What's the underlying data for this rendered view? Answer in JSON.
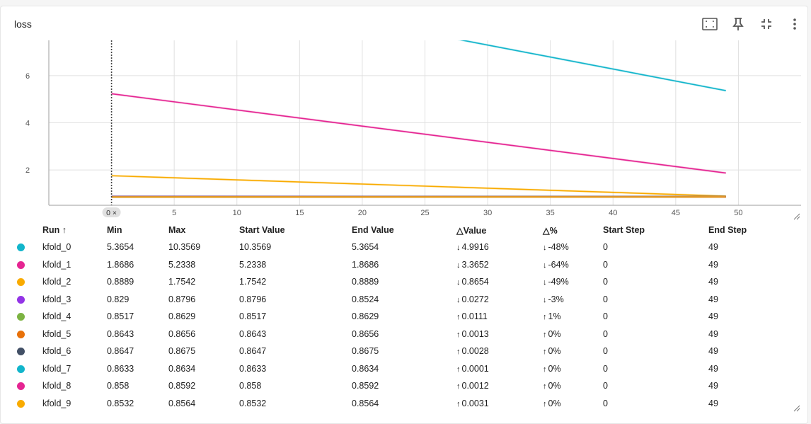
{
  "card": {
    "title": "loss"
  },
  "toolbar": {
    "icons": [
      "fit-domain-icon",
      "pin-icon",
      "collapse-icon",
      "more-vert-icon"
    ]
  },
  "chart_data": {
    "type": "line",
    "title": "loss",
    "xlabel": "",
    "ylabel": "",
    "x_ticks": [
      5,
      10,
      15,
      20,
      25,
      30,
      35,
      40,
      45,
      50
    ],
    "y_ticks": [
      2,
      4,
      6
    ],
    "xlim": [
      -5,
      55
    ],
    "ylim": [
      0.5,
      7.5
    ],
    "grid": true,
    "cursor_step": 0,
    "cursor_label": "0 ×",
    "series": [
      {
        "name": "kfold_0",
        "color": "#12b5cb",
        "x": [
          0,
          49
        ],
        "values": [
          10.3569,
          5.3654
        ]
      },
      {
        "name": "kfold_1",
        "color": "#e52592",
        "x": [
          0,
          49
        ],
        "values": [
          5.2338,
          1.8686
        ]
      },
      {
        "name": "kfold_2",
        "color": "#f9ab00",
        "x": [
          0,
          49
        ],
        "values": [
          1.7542,
          0.8889
        ]
      },
      {
        "name": "kfold_3",
        "color": "#9334e6",
        "x": [
          0,
          49
        ],
        "values": [
          0.8796,
          0.8524
        ]
      },
      {
        "name": "kfold_4",
        "color": "#7cb342",
        "x": [
          0,
          49
        ],
        "values": [
          0.8517,
          0.8629
        ]
      },
      {
        "name": "kfold_5",
        "color": "#e8710a",
        "x": [
          0,
          49
        ],
        "values": [
          0.8643,
          0.8656
        ]
      },
      {
        "name": "kfold_6",
        "color": "#425066",
        "x": [
          0,
          49
        ],
        "values": [
          0.8647,
          0.8675
        ]
      },
      {
        "name": "kfold_7",
        "color": "#12b5cb",
        "x": [
          0,
          49
        ],
        "values": [
          0.8633,
          0.8634
        ]
      },
      {
        "name": "kfold_8",
        "color": "#e52592",
        "x": [
          0,
          49
        ],
        "values": [
          0.858,
          0.8592
        ]
      },
      {
        "name": "kfold_9",
        "color": "#f9ab00",
        "x": [
          0,
          49
        ],
        "values": [
          0.8532,
          0.8564
        ]
      }
    ]
  },
  "table": {
    "headers": {
      "run": "Run ↑",
      "min": "Min",
      "max": "Max",
      "start_value": "Start Value",
      "end_value": "End Value",
      "delta_value": "△Value",
      "delta_pct": "△%",
      "start_step": "Start Step",
      "end_step": "End Step"
    },
    "rows": [
      {
        "color": "#12b5cb",
        "run": "kfold_0",
        "min": "5.3654",
        "max": "10.3569",
        "start_value": "10.3569",
        "end_value": "5.3654",
        "dir": "↓",
        "delta_value": "4.9916",
        "delta_pct": "-48%",
        "start_step": "0",
        "end_step": "49"
      },
      {
        "color": "#e52592",
        "run": "kfold_1",
        "min": "1.8686",
        "max": "5.2338",
        "start_value": "5.2338",
        "end_value": "1.8686",
        "dir": "↓",
        "delta_value": "3.3652",
        "delta_pct": "-64%",
        "start_step": "0",
        "end_step": "49"
      },
      {
        "color": "#f9ab00",
        "run": "kfold_2",
        "min": "0.8889",
        "max": "1.7542",
        "start_value": "1.7542",
        "end_value": "0.8889",
        "dir": "↓",
        "delta_value": "0.8654",
        "delta_pct": "-49%",
        "start_step": "0",
        "end_step": "49"
      },
      {
        "color": "#9334e6",
        "run": "kfold_3",
        "min": "0.829",
        "max": "0.8796",
        "start_value": "0.8796",
        "end_value": "0.8524",
        "dir": "↓",
        "delta_value": "0.0272",
        "delta_pct": "-3%",
        "start_step": "0",
        "end_step": "49"
      },
      {
        "color": "#7cb342",
        "run": "kfold_4",
        "min": "0.8517",
        "max": "0.8629",
        "start_value": "0.8517",
        "end_value": "0.8629",
        "dir": "↑",
        "delta_value": "0.0111",
        "delta_pct": "1%",
        "start_step": "0",
        "end_step": "49"
      },
      {
        "color": "#e8710a",
        "run": "kfold_5",
        "min": "0.8643",
        "max": "0.8656",
        "start_value": "0.8643",
        "end_value": "0.8656",
        "dir": "↑",
        "delta_value": "0.0013",
        "delta_pct": "0%",
        "start_step": "0",
        "end_step": "49"
      },
      {
        "color": "#425066",
        "run": "kfold_6",
        "min": "0.8647",
        "max": "0.8675",
        "start_value": "0.8647",
        "end_value": "0.8675",
        "dir": "↑",
        "delta_value": "0.0028",
        "delta_pct": "0%",
        "start_step": "0",
        "end_step": "49"
      },
      {
        "color": "#12b5cb",
        "run": "kfold_7",
        "min": "0.8633",
        "max": "0.8634",
        "start_value": "0.8633",
        "end_value": "0.8634",
        "dir": "↑",
        "delta_value": "0.0001",
        "delta_pct": "0%",
        "start_step": "0",
        "end_step": "49"
      },
      {
        "color": "#e52592",
        "run": "kfold_8",
        "min": "0.858",
        "max": "0.8592",
        "start_value": "0.858",
        "end_value": "0.8592",
        "dir": "↑",
        "delta_value": "0.0012",
        "delta_pct": "0%",
        "start_step": "0",
        "end_step": "49"
      },
      {
        "color": "#f9ab00",
        "run": "kfold_9",
        "min": "0.8532",
        "max": "0.8564",
        "start_value": "0.8532",
        "end_value": "0.8564",
        "dir": "↑",
        "delta_value": "0.0031",
        "delta_pct": "0%",
        "start_step": "0",
        "end_step": "49"
      }
    ]
  }
}
